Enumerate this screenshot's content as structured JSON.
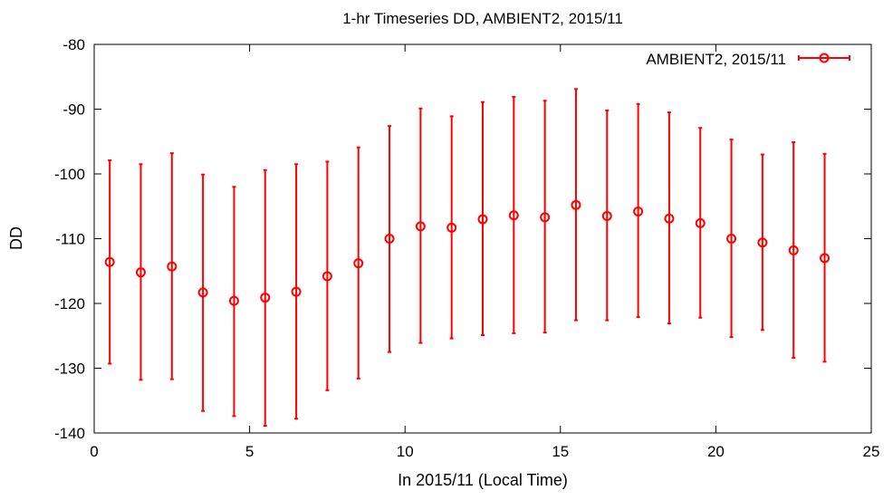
{
  "chart_data": {
    "type": "scatter",
    "title": "1-hr Timeseries DD, AMBIENT2, 2015/11",
    "xlabel": "In 2015/11 (Local Time)",
    "ylabel": "DD",
    "xlim": [
      0,
      25
    ],
    "ylim": [
      -140,
      -80
    ],
    "xticks": [
      0,
      5,
      10,
      15,
      20,
      25
    ],
    "yticks": [
      -140,
      -130,
      -120,
      -110,
      -100,
      -90,
      -80
    ],
    "grid": false,
    "legend_position": "top-right",
    "series": [
      {
        "name": "AMBIENT2, 2015/11",
        "color": "#ff0000",
        "marker": "circle",
        "error_bars": true,
        "x": [
          0.5,
          1.5,
          2.5,
          3.5,
          4.5,
          5.5,
          6.5,
          7.5,
          8.5,
          9.5,
          10.5,
          11.5,
          12.5,
          13.5,
          14.5,
          15.5,
          16.5,
          17.5,
          18.5,
          19.5,
          20.5,
          21.5,
          22.5,
          23.5
        ],
        "y": [
          -113.6,
          -115.2,
          -114.3,
          -118.3,
          -119.6,
          -119.1,
          -118.2,
          -115.8,
          -113.8,
          -110.0,
          -108.1,
          -108.3,
          -107.0,
          -106.4,
          -106.7,
          -104.8,
          -106.5,
          -105.8,
          -106.9,
          -107.6,
          -110.0,
          -110.6,
          -111.8,
          -113.0
        ],
        "y_lower": [
          -129.3,
          -131.8,
          -131.7,
          -136.6,
          -137.4,
          -138.9,
          -137.8,
          -133.4,
          -131.6,
          -127.5,
          -126.1,
          -125.4,
          -124.9,
          -124.6,
          -124.5,
          -122.6,
          -122.6,
          -122.1,
          -123.1,
          -122.2,
          -125.2,
          -124.1,
          -128.4,
          -129.0
        ],
        "y_upper": [
          -97.9,
          -98.5,
          -96.8,
          -100.1,
          -102.0,
          -99.4,
          -98.5,
          -98.1,
          -95.9,
          -92.6,
          -89.9,
          -91.1,
          -88.9,
          -88.1,
          -88.7,
          -86.9,
          -90.2,
          -89.2,
          -90.5,
          -92.9,
          -94.7,
          -97.0,
          -95.1,
          -96.9
        ]
      }
    ]
  }
}
